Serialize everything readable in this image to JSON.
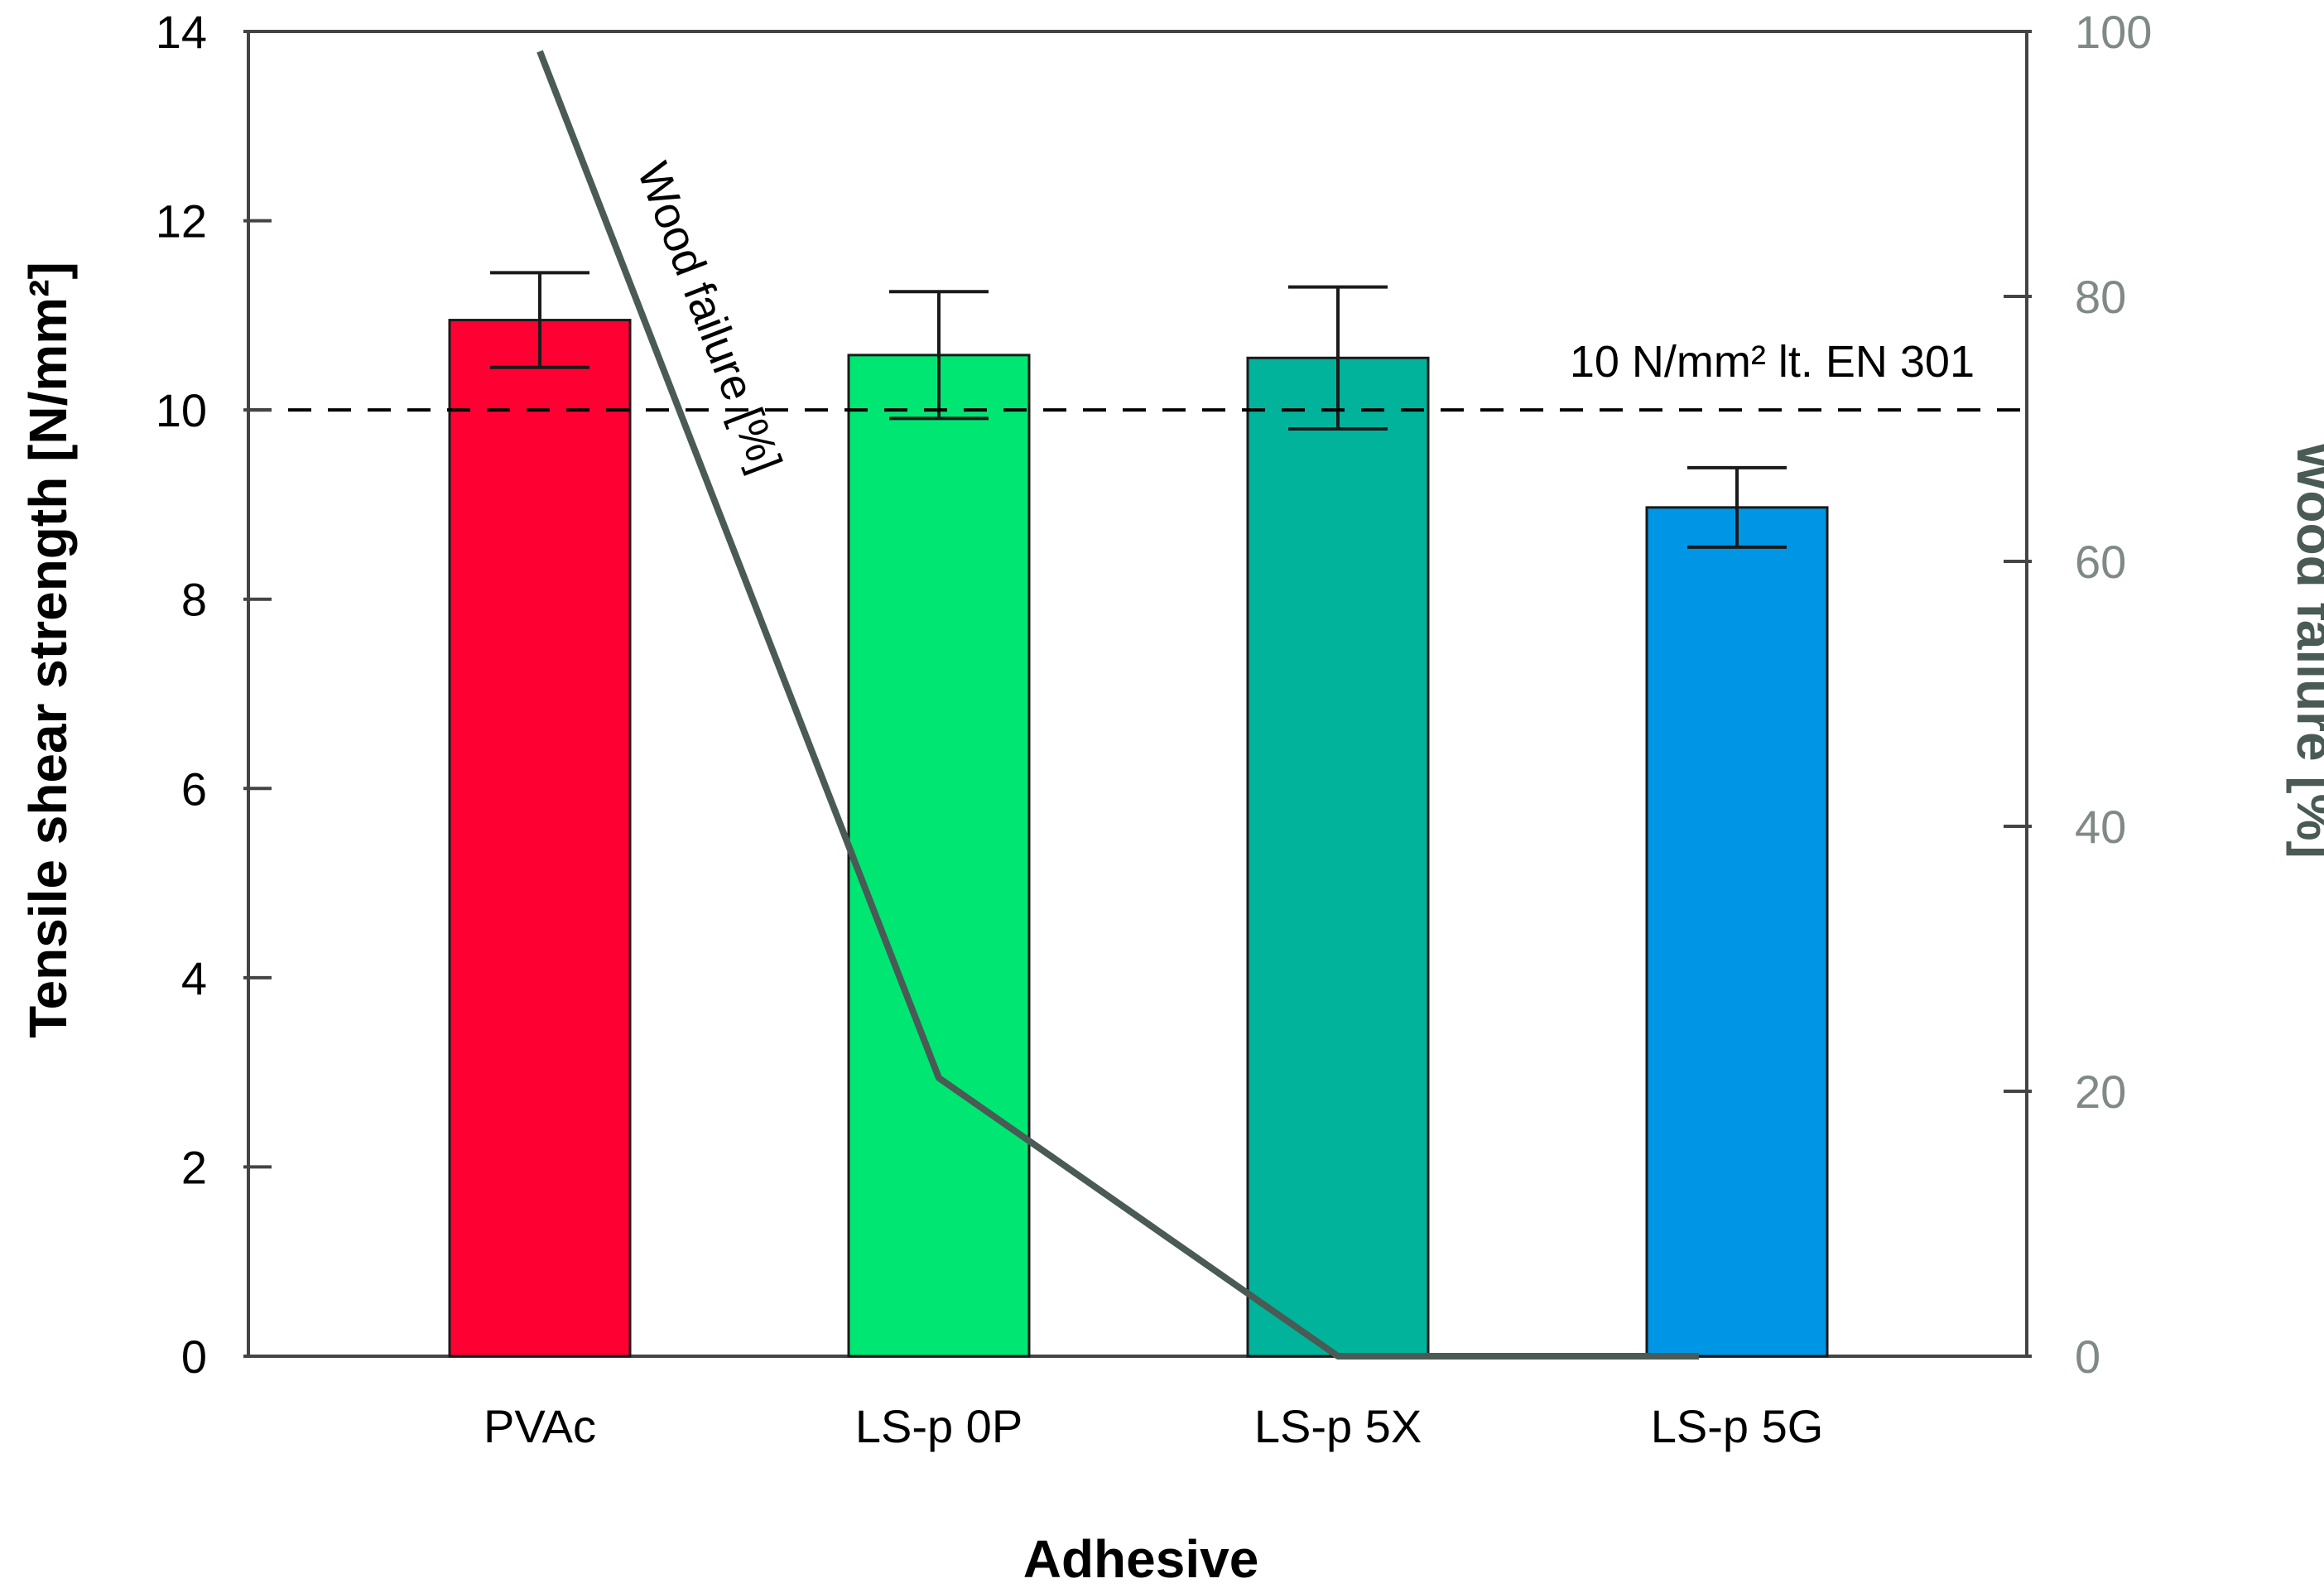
{
  "chart_data": {
    "type": "bar",
    "categories": [
      "PVAc",
      "LS-p 0P",
      "LS-p 5X",
      "LS-p 5G"
    ],
    "values": [
      10.95,
      10.58,
      10.55,
      8.97
    ],
    "errors": [
      0.5,
      0.67,
      0.75,
      0.42
    ],
    "bar_colors": [
      "#ff0033",
      "#00e673",
      "#00b39a",
      "#0096e6"
    ],
    "xlabel": "Adhesive",
    "ylabel": "Tensile shear strength [N/mm²]",
    "ylim": [
      0,
      14
    ],
    "yticks": [
      "0",
      "2",
      "4",
      "6",
      "8",
      "10",
      "12",
      "14"
    ],
    "y2label": "Wood failure [%]",
    "y2lim": [
      0,
      100
    ],
    "y2ticks": [
      "0",
      "20",
      "40",
      "60",
      "80",
      "100"
    ],
    "line_series": {
      "name": "Wood failure [%]",
      "color": "#4a5a55",
      "x_positions": [
        0,
        1,
        2,
        3
      ],
      "values": [
        98.5,
        21,
        0,
        0
      ],
      "label": "Wood failure [%]"
    },
    "reference_line": {
      "value": 10,
      "label": "10 N/mm² lt. EN 301"
    },
    "title": ""
  }
}
